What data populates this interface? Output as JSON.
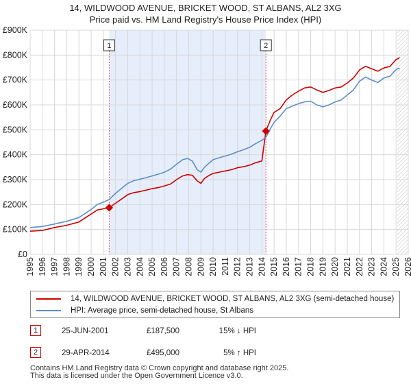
{
  "title": {
    "line1": "14, WILDWOOD AVENUE, BRICKET WOOD, ST ALBANS, AL2 3XG",
    "line2": "Price paid vs. HM Land Registry's House Price Index (HPI)"
  },
  "colors": {
    "price_line": "#cc0000",
    "hpi_line": "#5b8ec9",
    "shade": "#e6edfb",
    "grid": "#d8d8d8",
    "sale_marker_line": "#dd5555"
  },
  "chart_data": {
    "type": "line",
    "title": "14, WILDWOOD AVENUE, BRICKET WOOD, ST ALBANS, AL2 3XG — Price paid vs. HM Land Registry's House Price Index (HPI)",
    "xlim": [
      1995,
      2026
    ],
    "ylim": [
      0,
      900000
    ],
    "xlabel": "",
    "ylabel": "",
    "grid": true,
    "x_ticks": [
      "1995",
      "1996",
      "1997",
      "1998",
      "1999",
      "2000",
      "2001",
      "2002",
      "2003",
      "2004",
      "2005",
      "2006",
      "2007",
      "2008",
      "2009",
      "2010",
      "2011",
      "2012",
      "2013",
      "2014",
      "2015",
      "2016",
      "2017",
      "2018",
      "2019",
      "2020",
      "2021",
      "2022",
      "2023",
      "2024",
      "2025",
      "2026"
    ],
    "y_ticks": [
      {
        "value": 0,
        "label": "£0"
      },
      {
        "value": 100000,
        "label": "£100K"
      },
      {
        "value": 200000,
        "label": "£200K"
      },
      {
        "value": 300000,
        "label": "£300K"
      },
      {
        "value": 400000,
        "label": "£400K"
      },
      {
        "value": 500000,
        "label": "£500K"
      },
      {
        "value": 600000,
        "label": "£600K"
      },
      {
        "value": 700000,
        "label": "£700K"
      },
      {
        "value": 800000,
        "label": "£800K"
      },
      {
        "value": 900000,
        "label": "£900K"
      }
    ],
    "shaded_period": [
      2001.48,
      2014.33
    ],
    "hatched_from": 2025.1,
    "series": [
      {
        "name": "14, WILDWOOD AVENUE, BRICKET WOOD, ST ALBANS, AL2 3XG (semi-detached house)",
        "key": "price",
        "x": [
          1995.0,
          1996.0,
          1997.0,
          1998.0,
          1999.0,
          2000.0,
          2000.5,
          2001.0,
          2001.48,
          2002.0,
          2002.5,
          2003.0,
          2003.5,
          2004.0,
          2004.5,
          2005.0,
          2005.5,
          2006.0,
          2006.5,
          2007.0,
          2007.5,
          2007.9,
          2008.3,
          2008.7,
          2009.0,
          2009.3,
          2009.7,
          2010.0,
          2010.5,
          2011.0,
          2011.5,
          2012.0,
          2012.5,
          2013.0,
          2013.5,
          2014.0,
          2014.33,
          2014.7,
          2015.0,
          2015.5,
          2016.0,
          2016.5,
          2017.0,
          2017.5,
          2018.0,
          2018.5,
          2019.0,
          2019.5,
          2020.0,
          2020.5,
          2021.0,
          2021.5,
          2022.0,
          2022.5,
          2023.0,
          2023.5,
          2024.0,
          2024.5,
          2025.0,
          2025.3
        ],
        "y": [
          93000,
          96000,
          108000,
          117000,
          130000,
          162000,
          178000,
          183000,
          187500,
          205000,
          222000,
          240000,
          248000,
          252000,
          258000,
          264000,
          268000,
          275000,
          282000,
          300000,
          315000,
          320000,
          318000,
          295000,
          285000,
          305000,
          318000,
          325000,
          330000,
          335000,
          340000,
          348000,
          352000,
          358000,
          368000,
          375000,
          495000,
          540000,
          570000,
          585000,
          620000,
          640000,
          655000,
          668000,
          672000,
          660000,
          650000,
          658000,
          668000,
          672000,
          688000,
          708000,
          740000,
          755000,
          745000,
          735000,
          748000,
          755000,
          782000,
          790000
        ]
      },
      {
        "name": "HPI: Average price, semi-detached house, St Albans",
        "key": "hpi",
        "x": [
          1995.0,
          1996.0,
          1997.0,
          1998.0,
          1999.0,
          2000.0,
          2000.5,
          2001.0,
          2001.48,
          2002.0,
          2002.5,
          2003.0,
          2003.5,
          2004.0,
          2004.5,
          2005.0,
          2005.5,
          2006.0,
          2006.5,
          2007.0,
          2007.5,
          2007.9,
          2008.3,
          2008.7,
          2009.0,
          2009.3,
          2009.7,
          2010.0,
          2010.5,
          2011.0,
          2011.5,
          2012.0,
          2012.5,
          2013.0,
          2013.5,
          2014.0,
          2014.33,
          2014.7,
          2015.0,
          2015.5,
          2016.0,
          2016.5,
          2017.0,
          2017.5,
          2018.0,
          2018.5,
          2019.0,
          2019.5,
          2020.0,
          2020.5,
          2021.0,
          2021.5,
          2022.0,
          2022.5,
          2023.0,
          2023.5,
          2024.0,
          2024.5,
          2025.0,
          2025.3
        ],
        "y": [
          108000,
          112000,
          122000,
          133000,
          148000,
          180000,
          200000,
          210000,
          220000,
          245000,
          265000,
          285000,
          296000,
          302000,
          308000,
          315000,
          322000,
          330000,
          342000,
          362000,
          380000,
          385000,
          375000,
          340000,
          330000,
          350000,
          368000,
          380000,
          388000,
          395000,
          402000,
          412000,
          420000,
          430000,
          445000,
          458000,
          470000,
          505000,
          530000,
          555000,
          585000,
          595000,
          605000,
          612000,
          615000,
          600000,
          592000,
          600000,
          612000,
          620000,
          640000,
          660000,
          695000,
          712000,
          700000,
          690000,
          708000,
          715000,
          742000,
          748000
        ]
      }
    ],
    "annotations": [
      {
        "label": "1",
        "x": 2001.48,
        "y": 187500
      },
      {
        "label": "2",
        "x": 2014.33,
        "y": 495000
      }
    ]
  },
  "legend": {
    "items": [
      {
        "label": "14, WILDWOOD AVENUE, BRICKET WOOD, ST ALBANS, AL2 3XG (semi-detached house)"
      },
      {
        "label": "HPI: Average price, semi-detached house, St Albans"
      }
    ]
  },
  "sales": [
    {
      "num": "1",
      "date": "25-JUN-2001",
      "price": "£187,500",
      "hpi": "15% ↓ HPI"
    },
    {
      "num": "2",
      "date": "29-APR-2014",
      "price": "£495,000",
      "hpi": "5% ↑ HPI"
    }
  ],
  "footer": {
    "line1": "Contains HM Land Registry data © Crown copyright and database right 2025.",
    "line2": "This data is licensed under the Open Government Licence v3.0."
  }
}
